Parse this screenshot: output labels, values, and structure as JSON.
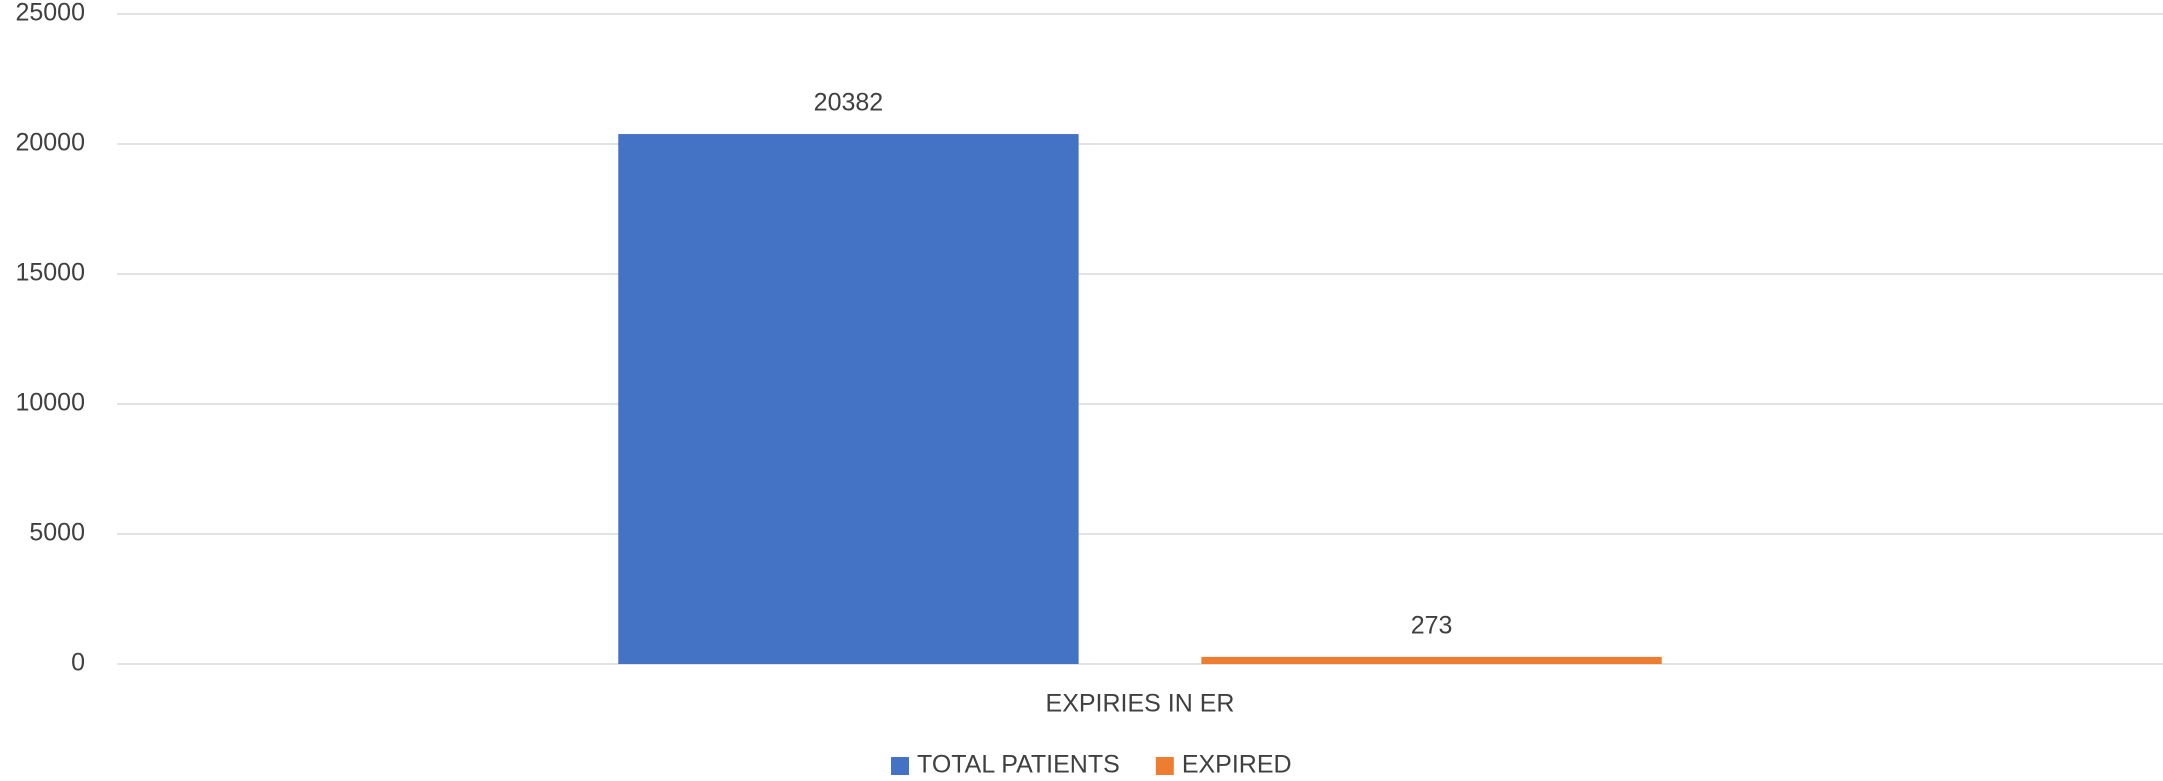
{
  "chart_data": {
    "type": "bar",
    "categories": [
      "EXPIRIES IN ER"
    ],
    "series": [
      {
        "name": "TOTAL PATIENTS",
        "color": "#4472c4",
        "values": [
          20382
        ]
      },
      {
        "name": "EXPIRED",
        "color": "#ed7d31",
        "values": [
          273
        ]
      }
    ],
    "ylim": [
      0,
      25000
    ],
    "yticks": [
      0,
      5000,
      10000,
      15000,
      20000,
      25000
    ],
    "grid": true,
    "legend": "bottom"
  }
}
